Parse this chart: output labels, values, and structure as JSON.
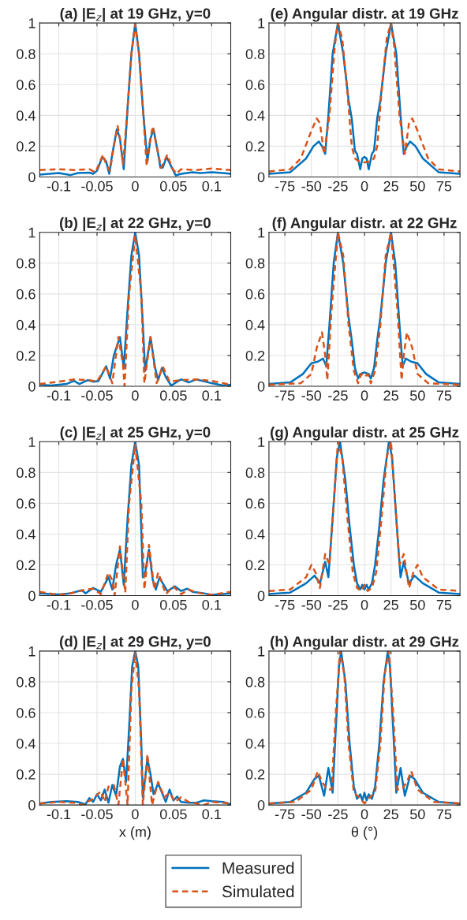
{
  "chart_data": [
    {
      "type": "line",
      "title": "(a) |E$_{z}$| at 19 GHz, y=0",
      "xlim": [
        -0.125,
        0.125
      ],
      "xticks": [
        -0.1,
        -0.05,
        0,
        0.05,
        0.1
      ],
      "ylim": [
        0,
        1
      ],
      "yticks": [
        0,
        0.2,
        0.4,
        0.6,
        0.8,
        1
      ],
      "grid": true,
      "legend": "bottom",
      "series": [
        {
          "name": "Measured",
          "color": "#0072bd",
          "line_style": "solid",
          "x": [
            -0.125,
            -0.1,
            -0.085,
            -0.075,
            -0.06,
            -0.055,
            -0.05,
            -0.043,
            -0.038,
            -0.034,
            -0.03,
            -0.024,
            -0.02,
            -0.015,
            -0.01,
            -0.005,
            0,
            0.005,
            0.01,
            0.016,
            0.02,
            0.024,
            0.03,
            0.033,
            0.036,
            0.041,
            0.046,
            0.053,
            0.06,
            0.075,
            0.085,
            0.1,
            0.115,
            0.125
          ],
          "values": [
            0.015,
            0.025,
            0.012,
            0.025,
            0.028,
            0.02,
            0.04,
            0.13,
            0.1,
            0.02,
            0.15,
            0.31,
            0.25,
            0.05,
            0.45,
            0.8,
            1,
            0.8,
            0.45,
            0.1,
            0.25,
            0.31,
            0.15,
            0.06,
            0.06,
            0.13,
            0.08,
            0.01,
            0.02,
            0.03,
            0.025,
            0.03,
            0.025,
            0.02
          ]
        },
        {
          "name": "Simulated",
          "color": "#d95319",
          "line_style": "dashed",
          "x": [
            -0.125,
            -0.1,
            -0.08,
            -0.06,
            -0.052,
            -0.046,
            -0.042,
            -0.038,
            -0.033,
            -0.028,
            -0.023,
            -0.02,
            -0.016,
            -0.01,
            -0.005,
            0,
            0.005,
            0.01,
            0.015,
            0.018,
            0.023,
            0.028,
            0.034,
            0.042,
            0.048,
            0.054,
            0.06,
            0.08,
            0.1,
            0.125
          ],
          "values": [
            0.045,
            0.05,
            0.045,
            0.05,
            0.03,
            0.1,
            0.145,
            0.08,
            0.04,
            0.2,
            0.33,
            0.25,
            0.08,
            0.45,
            0.8,
            0.99,
            0.8,
            0.45,
            0.07,
            0.2,
            0.33,
            0.2,
            0.06,
            0.145,
            0.06,
            0.02,
            0.05,
            0.045,
            0.055,
            0.045
          ]
        }
      ]
    },
    {
      "type": "line",
      "title": "(e) Angular distr. at 19 GHz",
      "xlim": [
        -90,
        90
      ],
      "xticks": [
        -75,
        -50,
        -25,
        0,
        25,
        50,
        75
      ],
      "ylim": [
        0,
        1
      ],
      "yticks": [
        0,
        0.2,
        0.4,
        0.6,
        0.8,
        1
      ],
      "grid": true,
      "series": [
        {
          "color": "#0072bd",
          "line_style": "solid",
          "x": [
            -90,
            -70,
            -55,
            -48,
            -43,
            -40,
            -37,
            -34,
            -30,
            -25,
            -20,
            -15,
            -12,
            -9,
            -7,
            -4,
            -2,
            0,
            2,
            4,
            7,
            9,
            12,
            15,
            20,
            25,
            30,
            34,
            37,
            40,
            43,
            48,
            55,
            70,
            90
          ],
          "values": [
            0.02,
            0.03,
            0.12,
            0.2,
            0.23,
            0.2,
            0.15,
            0.4,
            0.8,
            1.0,
            0.8,
            0.5,
            0.38,
            0.17,
            0.15,
            0.05,
            0.12,
            0.13,
            0.12,
            0.05,
            0.15,
            0.17,
            0.38,
            0.5,
            0.8,
            1.0,
            0.8,
            0.4,
            0.15,
            0.2,
            0.23,
            0.2,
            0.12,
            0.03,
            0.02
          ]
        },
        {
          "color": "#d95319",
          "line_style": "dashed",
          "x": [
            -90,
            -70,
            -60,
            -50,
            -45,
            -42,
            -38,
            -33,
            -28,
            -25,
            -21,
            -16,
            -12,
            -9,
            -5,
            0,
            5,
            9,
            12,
            16,
            21,
            25,
            28,
            33,
            38,
            42,
            45,
            50,
            60,
            70,
            90
          ],
          "values": [
            0.035,
            0.05,
            0.12,
            0.3,
            0.38,
            0.35,
            0.15,
            0.4,
            0.85,
            1.0,
            0.9,
            0.55,
            0.2,
            0.12,
            0.1,
            0.095,
            0.1,
            0.12,
            0.2,
            0.55,
            0.9,
            1.0,
            0.85,
            0.4,
            0.15,
            0.35,
            0.38,
            0.3,
            0.12,
            0.05,
            0.035
          ]
        }
      ]
    },
    {
      "type": "line",
      "title": "(b) |E$_{z}$| at 22 GHz, y=0",
      "xlim": [
        -0.125,
        0.125
      ],
      "xticks": [
        -0.1,
        -0.05,
        0,
        0.05,
        0.1
      ],
      "ylim": [
        0,
        1
      ],
      "yticks": [
        0,
        0.2,
        0.4,
        0.6,
        0.8,
        1
      ],
      "grid": true,
      "series": [
        {
          "color": "#0072bd",
          "line_style": "solid",
          "x": [
            -0.125,
            -0.11,
            -0.09,
            -0.08,
            -0.073,
            -0.062,
            -0.055,
            -0.048,
            -0.038,
            -0.033,
            -0.028,
            -0.02,
            -0.015,
            -0.01,
            -0.005,
            0,
            0.005,
            0.01,
            0.013,
            0.02,
            0.026,
            0.03,
            0.035,
            0.04,
            0.047,
            0.06,
            0.07,
            0.08,
            0.1,
            0.115,
            0.125
          ],
          "values": [
            0.01,
            0.005,
            0.015,
            0.035,
            0.015,
            0.04,
            0.03,
            0.035,
            0.13,
            0.05,
            0.2,
            0.32,
            0.12,
            0.5,
            0.85,
            1,
            0.85,
            0.4,
            0.1,
            0.32,
            0.12,
            0.04,
            0.12,
            0.06,
            0.005,
            0.045,
            0.025,
            0.045,
            0.02,
            0.005,
            0.01
          ]
        },
        {
          "color": "#d95319",
          "line_style": "dashed",
          "x": [
            -0.125,
            -0.1,
            -0.08,
            -0.06,
            -0.05,
            -0.038,
            -0.03,
            -0.022,
            -0.016,
            -0.014,
            -0.008,
            0,
            0.008,
            0.012,
            0.02,
            0.028,
            0.036,
            0.045,
            0.06,
            0.08,
            0.1,
            0.125
          ],
          "values": [
            0.015,
            0.03,
            0.045,
            0.04,
            0.03,
            0.13,
            0.02,
            0.32,
            0.14,
            0.0,
            0.6,
            0.98,
            0.6,
            0.02,
            0.32,
            0.02,
            0.13,
            0.03,
            0.04,
            0.045,
            0.035,
            0.01
          ]
        }
      ]
    },
    {
      "type": "line",
      "title": "(f) Angular distr. at 22 GHz",
      "xlim": [
        -90,
        90
      ],
      "xticks": [
        -75,
        -50,
        -25,
        0,
        25,
        50,
        75
      ],
      "ylim": [
        0,
        1
      ],
      "yticks": [
        0,
        0.2,
        0.4,
        0.6,
        0.8,
        1
      ],
      "grid": true,
      "series": [
        {
          "color": "#0072bd",
          "line_style": "solid",
          "x": [
            -90,
            -70,
            -58,
            -50,
            -44,
            -39,
            -36,
            -33,
            -29,
            -25,
            -20,
            -15,
            -12,
            -9,
            -6,
            -4,
            0,
            4,
            6,
            9,
            12,
            15,
            20,
            25,
            29,
            33,
            36,
            39,
            44,
            50,
            58,
            70,
            90
          ],
          "values": [
            0.015,
            0.025,
            0.08,
            0.15,
            0.16,
            0.18,
            0.13,
            0.4,
            0.8,
            1.0,
            0.8,
            0.45,
            0.3,
            0.12,
            0.05,
            0.08,
            0.09,
            0.08,
            0.05,
            0.12,
            0.3,
            0.45,
            0.8,
            1.0,
            0.8,
            0.4,
            0.13,
            0.18,
            0.16,
            0.15,
            0.08,
            0.025,
            0.015
          ]
        },
        {
          "color": "#d95319",
          "line_style": "dashed",
          "x": [
            -90,
            -60,
            -50,
            -45,
            -40,
            -37,
            -35,
            -31,
            -25,
            -20,
            -15,
            -10,
            -6,
            -3,
            0,
            3,
            6,
            10,
            15,
            20,
            25,
            31,
            35,
            37,
            40,
            45,
            50,
            60,
            90
          ],
          "values": [
            0.01,
            0.02,
            0.08,
            0.25,
            0.35,
            0.2,
            0.04,
            0.5,
            1.0,
            0.85,
            0.4,
            0.1,
            0.02,
            0.08,
            0.06,
            0.08,
            0.02,
            0.1,
            0.4,
            0.85,
            1.0,
            0.5,
            0.04,
            0.2,
            0.35,
            0.25,
            0.08,
            0.02,
            0.01
          ]
        }
      ]
    },
    {
      "type": "line",
      "title": "(c) |E$_{z}$| at 25 GHz, y=0",
      "xlim": [
        -0.125,
        0.125
      ],
      "xticks": [
        -0.1,
        -0.05,
        0,
        0.05,
        0.1
      ],
      "ylim": [
        0,
        1
      ],
      "yticks": [
        0,
        0.2,
        0.4,
        0.6,
        0.8,
        1
      ],
      "grid": true,
      "series": [
        {
          "color": "#0072bd",
          "line_style": "solid",
          "x": [
            -0.125,
            -0.1,
            -0.085,
            -0.07,
            -0.065,
            -0.055,
            -0.045,
            -0.035,
            -0.03,
            -0.025,
            -0.02,
            -0.015,
            -0.01,
            -0.005,
            0,
            0.005,
            0.01,
            0.013,
            0.018,
            0.023,
            0.027,
            0.032,
            0.036,
            0.042,
            0.052,
            0.06,
            0.068,
            0.075,
            0.09,
            0.1,
            0.125
          ],
          "values": [
            0.015,
            0.008,
            0.015,
            0.035,
            0.015,
            0.05,
            0.025,
            0.12,
            0.04,
            0.2,
            0.3,
            0.07,
            0.5,
            0.85,
            1,
            0.85,
            0.12,
            0.15,
            0.3,
            0.1,
            0.04,
            0.12,
            0.08,
            0.03,
            0.06,
            0.03,
            0.045,
            0.025,
            0.015,
            0.005,
            0.015
          ]
        },
        {
          "color": "#d95319",
          "line_style": "dashed",
          "x": [
            -0.125,
            -0.1,
            -0.08,
            -0.065,
            -0.055,
            -0.045,
            -0.035,
            -0.03,
            -0.027,
            -0.02,
            -0.013,
            -0.008,
            0,
            0.008,
            0.012,
            0.018,
            0.025,
            0.03,
            0.04,
            0.05,
            0.06,
            0.07,
            0.08,
            0.1,
            0.125
          ],
          "values": [
            0.025,
            0.005,
            0.02,
            0.04,
            0.045,
            0.01,
            0.15,
            0.1,
            0.0,
            0.32,
            0.02,
            0.6,
            0.98,
            0.6,
            0.04,
            0.33,
            0.04,
            0.15,
            0.01,
            0.06,
            0.01,
            0.04,
            0.02,
            0.005,
            0.025
          ]
        }
      ]
    },
    {
      "type": "line",
      "title": "(g) Angular distr. at 25 GHz",
      "xlim": [
        -90,
        90
      ],
      "xticks": [
        -75,
        -50,
        -25,
        0,
        25,
        50,
        75
      ],
      "ylim": [
        0,
        1
      ],
      "yticks": [
        0,
        0.2,
        0.4,
        0.6,
        0.8,
        1
      ],
      "grid": true,
      "series": [
        {
          "color": "#0072bd",
          "line_style": "solid",
          "x": [
            -90,
            -70,
            -55,
            -47,
            -42,
            -37,
            -34,
            -30,
            -26,
            -23,
            -18,
            -14,
            -10,
            -7,
            -4,
            -2,
            0,
            2,
            4,
            7,
            10,
            14,
            18,
            23,
            26,
            30,
            34,
            37,
            42,
            47,
            55,
            70,
            90
          ],
          "values": [
            0.01,
            0.02,
            0.08,
            0.13,
            0.08,
            0.22,
            0.12,
            0.5,
            0.9,
            1.0,
            0.75,
            0.45,
            0.2,
            0.08,
            0.04,
            0.07,
            0.04,
            0.07,
            0.04,
            0.08,
            0.2,
            0.45,
            0.75,
            1.0,
            0.9,
            0.5,
            0.12,
            0.22,
            0.08,
            0.13,
            0.08,
            0.02,
            0.01
          ]
        },
        {
          "color": "#d95319",
          "line_style": "dashed",
          "x": [
            -90,
            -70,
            -55,
            -50,
            -46,
            -42,
            -37,
            -33,
            -29,
            -25,
            -21,
            -16,
            -11,
            -7,
            -3,
            0,
            3,
            7,
            11,
            16,
            21,
            25,
            29,
            33,
            37,
            42,
            46,
            50,
            55,
            70,
            90
          ],
          "values": [
            0.03,
            0.04,
            0.12,
            0.2,
            0.15,
            0.05,
            0.27,
            0.2,
            0.6,
            1.0,
            0.9,
            0.5,
            0.15,
            0.05,
            0.03,
            0.07,
            0.03,
            0.05,
            0.15,
            0.5,
            0.9,
            1.0,
            0.6,
            0.2,
            0.27,
            0.05,
            0.15,
            0.2,
            0.12,
            0.04,
            0.03
          ]
        }
      ]
    },
    {
      "type": "line",
      "title": "(d) |E$_{z}$| at 29 GHz, y=0",
      "xlabel": "x (m)",
      "xlim": [
        -0.125,
        0.125
      ],
      "xticks": [
        -0.1,
        -0.05,
        0,
        0.05,
        0.1
      ],
      "ylim": [
        0,
        1
      ],
      "yticks": [
        0,
        0.2,
        0.4,
        0.6,
        0.8,
        1
      ],
      "grid": true,
      "series": [
        {
          "color": "#0072bd",
          "line_style": "solid",
          "x": [
            -0.125,
            -0.11,
            -0.09,
            -0.075,
            -0.065,
            -0.06,
            -0.055,
            -0.05,
            -0.045,
            -0.04,
            -0.035,
            -0.03,
            -0.025,
            -0.02,
            -0.016,
            -0.012,
            -0.008,
            -0.004,
            0,
            0.004,
            0.008,
            0.01,
            0.016,
            0.02,
            0.024,
            0.03,
            0.035,
            0.04,
            0.045,
            0.05,
            0.055,
            0.06,
            0.07,
            0.08,
            0.09,
            0.1,
            0.115,
            0.125
          ],
          "values": [
            0.01,
            0.02,
            0.025,
            0.02,
            0.005,
            0.045,
            0.02,
            0.07,
            0.03,
            0.1,
            0.015,
            0.13,
            0.06,
            0.25,
            0.3,
            0.15,
            0.5,
            0.9,
            1,
            0.9,
            0.4,
            0.05,
            0.3,
            0.2,
            0.07,
            0.14,
            0.08,
            0.02,
            0.1,
            0.03,
            0.055,
            0.02,
            0.015,
            0.015,
            0.03,
            0.025,
            0.02,
            0.005
          ]
        },
        {
          "color": "#d95319",
          "line_style": "dashed",
          "x": [
            -0.125,
            -0.1,
            -0.08,
            -0.07,
            -0.055,
            -0.045,
            -0.04,
            -0.035,
            -0.028,
            -0.022,
            -0.016,
            -0.01,
            -0.005,
            0,
            0.005,
            0.01,
            0.016,
            0.022,
            0.03,
            0.038,
            0.045,
            0.052,
            0.06,
            0.07,
            0.09,
            0.1,
            0.125
          ],
          "values": [
            0.01,
            0.02,
            0.015,
            0.0,
            0.04,
            0.09,
            0.02,
            0.12,
            0.13,
            0.0,
            0.3,
            0.0,
            0.75,
            0.99,
            0.75,
            0.0,
            0.33,
            0.0,
            0.15,
            0.05,
            0.08,
            0.02,
            0.05,
            0.02,
            0.0,
            0.02,
            0.01
          ]
        }
      ]
    },
    {
      "type": "line",
      "title": "(h) Angular distr. at 29 GHz",
      "xlabel": "θ (°)",
      "xlim": [
        -90,
        90
      ],
      "xticks": [
        -75,
        -50,
        -25,
        0,
        25,
        50,
        75
      ],
      "ylim": [
        0,
        1
      ],
      "yticks": [
        0,
        0.2,
        0.4,
        0.6,
        0.8,
        1
      ],
      "grid": true,
      "series": [
        {
          "color": "#0072bd",
          "line_style": "solid",
          "x": [
            -90,
            -70,
            -55,
            -47,
            -43,
            -38,
            -34,
            -30,
            -27,
            -24,
            -22,
            -18,
            -14,
            -10,
            -7,
            -4,
            -2,
            0,
            2,
            4,
            7,
            10,
            14,
            18,
            22,
            24,
            27,
            30,
            34,
            38,
            43,
            47,
            55,
            70,
            90
          ],
          "values": [
            0.01,
            0.02,
            0.08,
            0.17,
            0.19,
            0.06,
            0.24,
            0.08,
            0.5,
            0.9,
            1.0,
            0.8,
            0.4,
            0.12,
            0.04,
            0.07,
            0.03,
            0.08,
            0.03,
            0.07,
            0.04,
            0.12,
            0.4,
            0.8,
            1.0,
            0.9,
            0.5,
            0.08,
            0.24,
            0.06,
            0.19,
            0.17,
            0.08,
            0.02,
            0.01
          ]
        },
        {
          "color": "#d95319",
          "line_style": "dashed",
          "x": [
            -90,
            -65,
            -50,
            -44,
            -40,
            -35,
            -31,
            -27,
            -23,
            -19,
            -15,
            -10,
            -5,
            0,
            5,
            10,
            15,
            19,
            23,
            27,
            31,
            35,
            40,
            44,
            50,
            65,
            90
          ],
          "values": [
            0.01,
            0.02,
            0.1,
            0.22,
            0.15,
            0.1,
            0.1,
            0.6,
            1.0,
            0.85,
            0.4,
            0.08,
            0.05,
            0.01,
            0.05,
            0.08,
            0.4,
            0.85,
            1.0,
            0.6,
            0.1,
            0.1,
            0.15,
            0.22,
            0.1,
            0.02,
            0.01
          ]
        }
      ]
    }
  ]
}
